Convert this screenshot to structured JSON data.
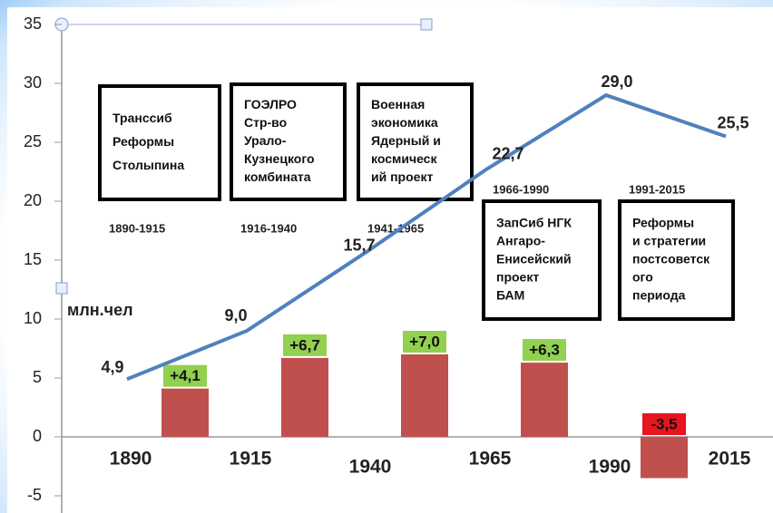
{
  "chart_data": {
    "type": "line_bar",
    "y_axis_label": "млн.чел",
    "ylim": [
      -6,
      35
    ],
    "yticks": [
      -5,
      0,
      5,
      10,
      15,
      20,
      25,
      30,
      35
    ],
    "categories": [
      "1890",
      "1915",
      "1940",
      "1965",
      "1990",
      "2015"
    ],
    "line": {
      "color": "#4f81bd",
      "values": [
        4.9,
        9.0,
        15.7,
        22.7,
        29.0,
        25.5
      ],
      "value_labels": [
        "4,9",
        "9,0",
        "15,7",
        "22,7",
        "29,0",
        "25,5"
      ]
    },
    "bars": {
      "color": "#c0504d",
      "values": [
        4.1,
        6.7,
        7.0,
        6.3,
        -3.5
      ],
      "value_labels": [
        "+4,1",
        "+6,7",
        "+7,0",
        "+6,3",
        "-3,5"
      ],
      "label_colors": [
        "#92d050",
        "#92d050",
        "#92d050",
        "#92d050",
        "#e8141e"
      ]
    },
    "annotations": [
      {
        "lines": [
          "Транссиб",
          "Реформы",
          "Столыпина"
        ],
        "period": "1890-1915"
      },
      {
        "lines": [
          "ГОЭЛРО",
          "Стр-во",
          "Урало-",
          "Кузнецкого",
          "комбината"
        ],
        "period": "1916-1940"
      },
      {
        "lines": [
          "Военная",
          "экономика",
          "Ядерный и",
          "космическ",
          "ий проект"
        ],
        "period": "1941-1965"
      },
      {
        "lines": [
          "ЗапСиб НГК",
          "Ангаро-",
          "Енисейский",
          "проект",
          "БАМ"
        ],
        "period": "1966-1990"
      },
      {
        "lines": [
          "Реформы",
          "и стратегии",
          "постсоветск",
          "ого",
          "периода"
        ],
        "period": "1991-2015"
      }
    ]
  }
}
